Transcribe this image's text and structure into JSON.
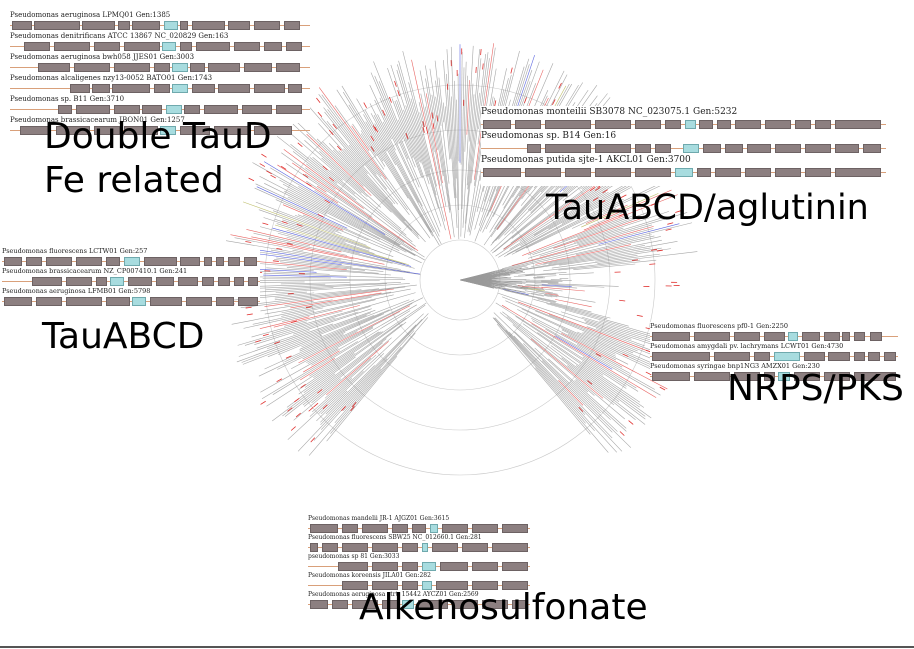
{
  "captions": {
    "double_taud": "Double TauD",
    "fe_related": "Fe related",
    "taudabcd_aglutinin": "TauABCD/aglutinin",
    "tauabcd": "TauABCD",
    "nrps_pks": "NRPS/PKS",
    "alkenosulfonate": "Alkenosulfonate"
  },
  "panels": {
    "top_left": {
      "rows": [
        {
          "label": "Pseudomonas aeruginosa LPMQ01 Gen:1385"
        },
        {
          "label": "Pseudomonas denitrificans ATCC 13867 NC_020829 Gen:163"
        },
        {
          "label": "Pseudomonas aeruginosa bwh058 JJES01 Gen:3003"
        },
        {
          "label": "Pseudomonas alcaligenes nzy13-0052 BATO01 Gen:1743"
        },
        {
          "label": "Pseudomonas sp. B11 Gen:3710"
        },
        {
          "label": "Pseudomonas brassicacearum JBON01 Gen:1257"
        }
      ]
    },
    "top_right": {
      "rows": [
        {
          "label": "Pseudomonas monteilii SB3078 NC_023075.1 Gen:5232"
        },
        {
          "label": "Pseudomonas sp. B14 Gen:16"
        },
        {
          "label": "Pseudomonas putida sjte-1 AKCL01 Gen:3700"
        }
      ]
    },
    "mid_left": {
      "rows": [
        {
          "label": "Pseudomonas fluorescens LCTW01 Gen:257"
        },
        {
          "label": "Pseudomonas brassicacearum NZ_CP007410.1 Gen:241"
        },
        {
          "label": "Pseudomonas aeruginosa LFMB01 Gen:5798"
        }
      ]
    },
    "mid_right": {
      "rows": [
        {
          "label": "Pseudomonas fluorescens pf0-1 Gen:2250"
        },
        {
          "label": "Pseudomonas amygdali pv. lachrymans LCWT01 Gen:4730"
        },
        {
          "label": "Pseudomonas syringae bnp1NG3 AMZX01 Gen:230"
        }
      ]
    },
    "bottom": {
      "rows": [
        {
          "label": "Pseudomonas mandelii JR-1 AJGZ01 Gen:3615"
        },
        {
          "label": "Pseudomonas fluorescens SBW25 NC_012660.1 Gen:281"
        },
        {
          "label": "pseudomonas sp 81 Gen:3033"
        },
        {
          "label": "Pseudomonas koreensis JILA01 Gen:282"
        },
        {
          "label": "Pseudomonas aeruginosa strt. 15442 AYCZ01 Gen:2569"
        }
      ]
    }
  },
  "colors": {
    "gene": "#8c7f80",
    "highlight_gene": "#a8dcdf",
    "backbone": "#d9a07a",
    "branch": "#888888",
    "clade_red": "#e0312f",
    "clade_blue": "#2431d6",
    "clade_olive": "#a8a83a"
  }
}
